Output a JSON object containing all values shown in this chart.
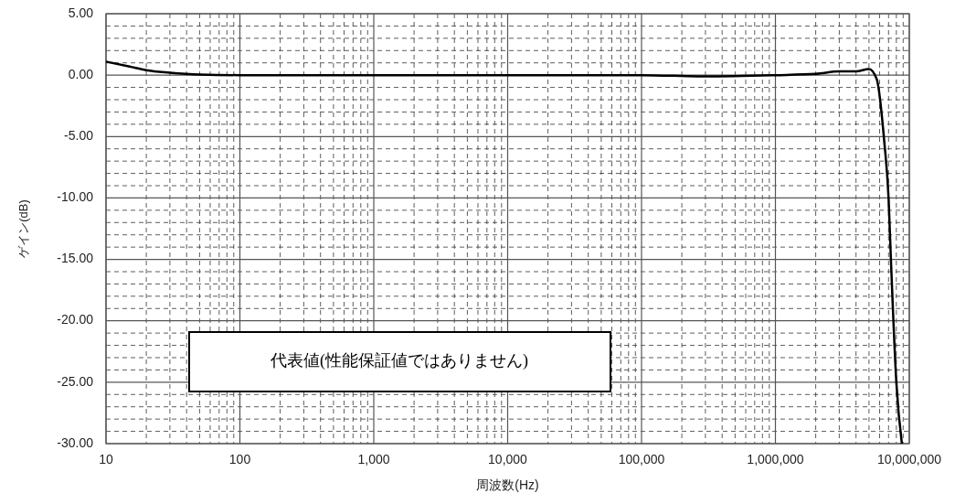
{
  "chart_data": {
    "type": "line",
    "xlabel": "周波数(Hz)",
    "ylabel": "ゲイン(dB)",
    "log": "x",
    "grid": true,
    "marker": "none",
    "line_style": "solid",
    "annotations": [
      "代表値(性能保証値ではありません)"
    ],
    "xlim": [
      10,
      10000000
    ],
    "ylim": [
      -30,
      5
    ],
    "xticks": [
      10,
      100,
      {
        "value": 1000,
        "label": "1,000"
      },
      {
        "value": 10000,
        "label": "10,000"
      },
      {
        "value": 100000,
        "label": "100,000"
      },
      {
        "value": 1000000,
        "label": "1,000,000"
      },
      {
        "value": 10000000,
        "label": "10,000,000"
      }
    ],
    "yticks": [
      {
        "value": 5,
        "label": "5.00"
      },
      {
        "value": 0,
        "label": "0.00"
      },
      {
        "value": -5,
        "label": "-5.00"
      },
      {
        "value": -10,
        "label": "-10.00"
      },
      {
        "value": -15,
        "label": "-15.00"
      },
      {
        "value": -20,
        "label": "-20.00"
      },
      {
        "value": -25,
        "label": "-25.00"
      },
      {
        "value": -30,
        "label": "-30.00"
      }
    ],
    "x": [
      10,
      15,
      20,
      30,
      50,
      100,
      1000,
      10000,
      100000,
      300000,
      1000000,
      2000000,
      3000000,
      4000000,
      5000000,
      5700000,
      6500000,
      7000000,
      7300000,
      8000000,
      8800000
    ],
    "series": [
      {
        "color": "#000000",
        "values": [
          1.1,
          0.7,
          0.4,
          0.2,
          0.05,
          0,
          0,
          0,
          0,
          -0.1,
          0,
          0.1,
          0.3,
          0.3,
          0.5,
          -0.3,
          -5.4,
          -10,
          -15.2,
          -25,
          -30
        ]
      }
    ]
  }
}
